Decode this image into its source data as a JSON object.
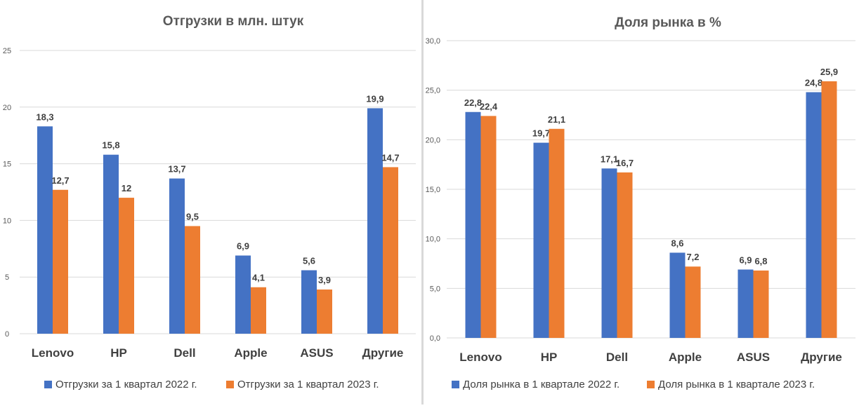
{
  "chart_data": [
    {
      "type": "bar",
      "title": "Отгрузки  в млн.  штук",
      "categories": [
        "Lenovo",
        "HP",
        "Dell",
        "Apple",
        "ASUS",
        "Другие"
      ],
      "series": [
        {
          "name": "Отгрузки за 1 квартал 2022 г.",
          "values": [
            18.3,
            15.8,
            13.7,
            6.9,
            5.6,
            19.9
          ],
          "labels": [
            "18,3",
            "15,8",
            "13,7",
            "6,9",
            "5,6",
            "19,9"
          ],
          "color": "#4472c4"
        },
        {
          "name": "Отгрузки за 1 квартал 2023 г.",
          "values": [
            12.7,
            12,
            9.5,
            4.1,
            3.9,
            14.7
          ],
          "labels": [
            "12,7",
            "12",
            "9,5",
            "4,1",
            "3,9",
            "14,7"
          ],
          "color": "#ed7d31"
        }
      ],
      "ylim": [
        0,
        25
      ],
      "yticks": [
        "0",
        "5",
        "10",
        "15",
        "20",
        "25"
      ],
      "grid": true,
      "legend": "bottom"
    },
    {
      "type": "bar",
      "title": "Доля  рынка в %",
      "categories": [
        "Lenovo",
        "HP",
        "Dell",
        "Apple",
        "ASUS",
        "Другие"
      ],
      "series": [
        {
          "name": "Доля рынка в 1 квартале 2022 г.",
          "values": [
            22.8,
            19.7,
            17.1,
            8.6,
            6.9,
            24.8
          ],
          "labels": [
            "22,8",
            "19,7",
            "17,1",
            "8,6",
            "6,9",
            "24,8"
          ],
          "color": "#4472c4"
        },
        {
          "name": "Доля рынка в 1 квартале 2023 г.",
          "values": [
            22.4,
            21.1,
            16.7,
            7.2,
            6.8,
            25.9
          ],
          "labels": [
            "22,4",
            "21,1",
            "16,7",
            "7,2",
            "6,8",
            "25,9"
          ],
          "color": "#ed7d31"
        }
      ],
      "ylim": [
        0,
        30
      ],
      "yticks": [
        "0,0",
        "5,0",
        "10,0",
        "15,0",
        "20,0",
        "25,0",
        "30,0"
      ],
      "grid": true,
      "legend": "bottom"
    }
  ]
}
